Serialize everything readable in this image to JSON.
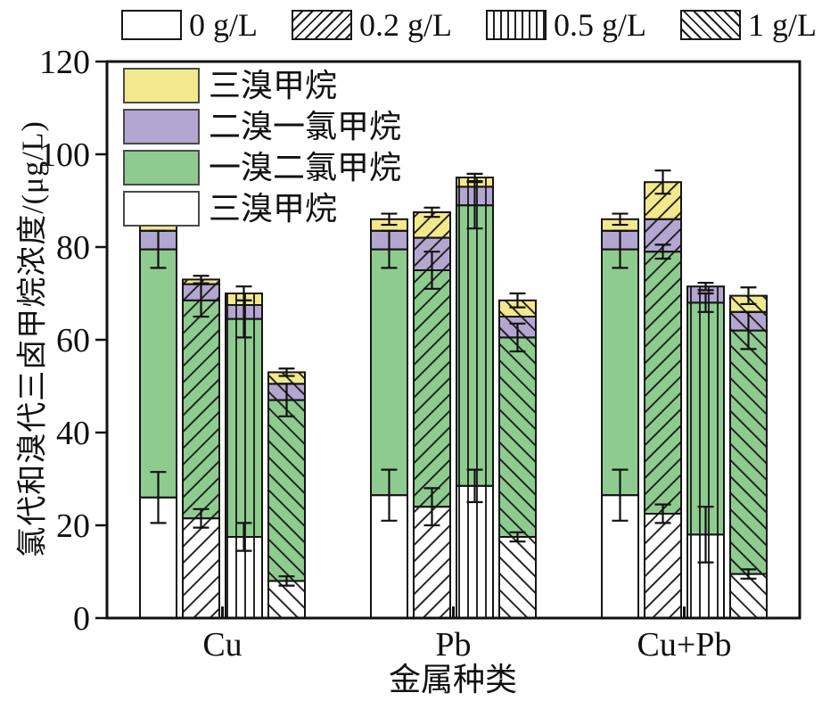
{
  "figure": {
    "background": "#ffffff",
    "text_color": "#111111",
    "axis_color": "#111111"
  },
  "chart_data": {
    "type": "bar",
    "stacked": true,
    "title": "",
    "xlabel": "金属种类",
    "ylabel": "氯代和溴代三卤甲烷浓度/(μg/L)",
    "ylim": [
      0,
      120
    ],
    "yticks": [
      0,
      20,
      40,
      60,
      80,
      100,
      120
    ],
    "grid": false,
    "categories": [
      "Cu",
      "Pb",
      "Cu+Pb"
    ],
    "legend_position": "dose legend above plot; component legend inside top-left",
    "dose_legend": [
      {
        "label": "0 g/L",
        "hatch": "none"
      },
      {
        "label": "0.2 g/L",
        "hatch": "forward-diagonal"
      },
      {
        "label": "0.5 g/L",
        "hatch": "vertical"
      },
      {
        "label": "1 g/L",
        "hatch": "back-diagonal"
      }
    ],
    "component_legend": [
      {
        "label": "三溴甲烷",
        "color": "#f2e98c"
      },
      {
        "label": "二溴一氯甲烷",
        "color": "#b3a6d0"
      },
      {
        "label": "一溴二氯甲烷",
        "color": "#8ecb8f"
      },
      {
        "label": "三溴甲烷",
        "color": "#ffffff"
      }
    ],
    "stack_order_bottom_to_top": [
      "三溴甲烷(白)",
      "一溴二氯甲烷(绿)",
      "二溴一氯甲烷(紫)",
      "三溴甲烷(黄)"
    ],
    "stack_colors": [
      "#ffffff",
      "#8ecb8f",
      "#b3a6d0",
      "#f2e98c"
    ],
    "units": "μg/L",
    "series": [
      {
        "category": "Cu",
        "bars": [
          {
            "dose": "0 g/L",
            "segments": [
              26,
              53.5,
              4,
              2.5
            ],
            "errors": [
              {
                "y": 26,
                "e": 5.5
              },
              {
                "y": 79.5,
                "e": 4
              },
              {
                "y": 86,
                "e": 1.2
              }
            ]
          },
          {
            "dose": "0.2 g/L",
            "segments": [
              21.5,
              47,
              3.5,
              1
            ],
            "errors": [
              {
                "y": 21.5,
                "e": 2
              },
              {
                "y": 68.5,
                "e": 3.5
              },
              {
                "y": 73,
                "e": 0.8
              }
            ]
          },
          {
            "dose": "0.5 g/L",
            "segments": [
              17.5,
              47,
              3,
              2.5
            ],
            "errors": [
              {
                "y": 17.5,
                "e": 3
              },
              {
                "y": 64.5,
                "e": 4
              },
              {
                "y": 70,
                "e": 1.5
              }
            ]
          },
          {
            "dose": "1 g/L",
            "segments": [
              8,
              39,
              3.5,
              2.5
            ],
            "errors": [
              {
                "y": 8,
                "e": 1
              },
              {
                "y": 47,
                "e": 3.5
              },
              {
                "y": 53,
                "e": 0.8
              }
            ]
          }
        ]
      },
      {
        "category": "Pb",
        "bars": [
          {
            "dose": "0 g/L",
            "segments": [
              26.5,
              53,
              4,
              2.5
            ],
            "errors": [
              {
                "y": 26.5,
                "e": 5.5
              },
              {
                "y": 79.5,
                "e": 4
              },
              {
                "y": 86,
                "e": 1.2
              }
            ]
          },
          {
            "dose": "0.2 g/L",
            "segments": [
              24,
              51,
              7,
              5.5
            ],
            "errors": [
              {
                "y": 24,
                "e": 4
              },
              {
                "y": 75,
                "e": 4
              },
              {
                "y": 87.5,
                "e": 1
              }
            ]
          },
          {
            "dose": "0.5 g/L",
            "segments": [
              28.5,
              60.5,
              4,
              2
            ],
            "errors": [
              {
                "y": 28.5,
                "e": 3.5
              },
              {
                "y": 89,
                "e": 5
              },
              {
                "y": 95,
                "e": 0.8
              }
            ]
          },
          {
            "dose": "1 g/L",
            "segments": [
              17.5,
              43,
              4.5,
              3.5
            ],
            "errors": [
              {
                "y": 17.5,
                "e": 1
              },
              {
                "y": 60.5,
                "e": 3
              },
              {
                "y": 68.5,
                "e": 1.5
              }
            ]
          }
        ]
      },
      {
        "category": "Cu+Pb",
        "bars": [
          {
            "dose": "0 g/L",
            "segments": [
              26.5,
              53,
              4,
              2.5
            ],
            "errors": [
              {
                "y": 26.5,
                "e": 5.5
              },
              {
                "y": 79.5,
                "e": 4
              },
              {
                "y": 86,
                "e": 1.2
              }
            ]
          },
          {
            "dose": "0.2 g/L",
            "segments": [
              22.5,
              56.5,
              7,
              8
            ],
            "errors": [
              {
                "y": 22.5,
                "e": 2
              },
              {
                "y": 79,
                "e": 1.5
              },
              {
                "y": 94,
                "e": 2.5
              }
            ]
          },
          {
            "dose": "0.5 g/L",
            "segments": [
              18,
              50,
              3.5,
              0
            ],
            "errors": [
              {
                "y": 18,
                "e": 6
              },
              {
                "y": 68,
                "e": 2
              },
              {
                "y": 71.5,
                "e": 0.8
              }
            ]
          },
          {
            "dose": "1 g/L",
            "segments": [
              9.5,
              52.5,
              4,
              3.5
            ],
            "errors": [
              {
                "y": 9.5,
                "e": 1
              },
              {
                "y": 62,
                "e": 4
              },
              {
                "y": 69.5,
                "e": 1.8
              }
            ]
          }
        ]
      }
    ]
  }
}
